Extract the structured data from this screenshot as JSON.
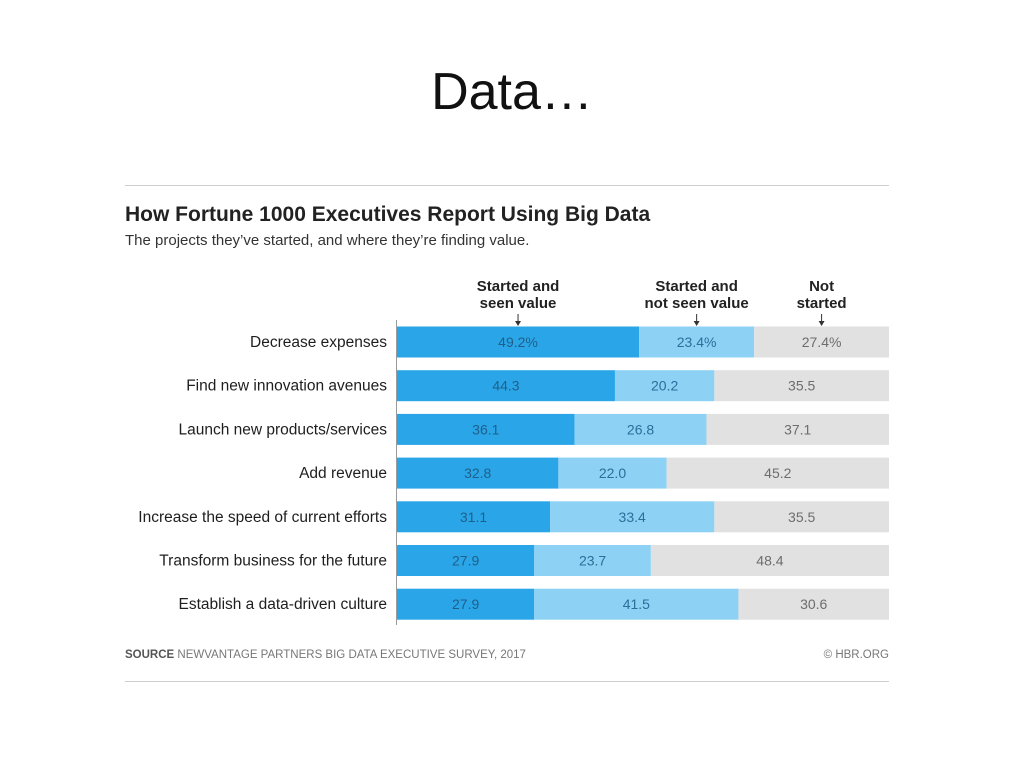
{
  "slide": {
    "title": "Data…"
  },
  "chart_data": {
    "type": "bar",
    "orientation": "horizontal-stacked",
    "title": "How Fortune 1000 Executives Report Using Big Data",
    "subtitle": "The projects they’ve started, and where they’re finding value.",
    "categories": [
      "Decrease expenses",
      "Find new innovation avenues",
      "Launch new products/services",
      "Add revenue",
      "Increase the speed of current efforts",
      "Transform business for the future",
      "Establish a data-driven culture"
    ],
    "series": [
      {
        "name": "Started and seen value",
        "color": "#2aa6e8",
        "values": [
          49.2,
          44.3,
          36.1,
          32.8,
          31.1,
          27.9,
          27.9
        ],
        "labels": [
          "49.2%",
          "44.3",
          "36.1",
          "32.8",
          "31.1",
          "27.9",
          "27.9"
        ]
      },
      {
        "name": "Started and not seen value",
        "color": "#8dd2f5",
        "values": [
          23.4,
          20.2,
          26.8,
          22.0,
          33.4,
          23.7,
          41.5
        ],
        "labels": [
          "23.4%",
          "20.2",
          "26.8",
          "22.0",
          "33.4",
          "23.7",
          "41.5"
        ]
      },
      {
        "name": "Not started",
        "color": "#e1e1e1",
        "values": [
          27.4,
          35.5,
          37.1,
          45.2,
          35.5,
          48.4,
          30.6
        ],
        "labels": [
          "27.4%",
          "35.5",
          "37.1",
          "45.2",
          "35.5",
          "48.4",
          "30.6"
        ]
      }
    ],
    "legend_header_lines": [
      [
        "Started and",
        "seen value"
      ],
      [
        "Started and",
        "not seen value"
      ],
      [
        "Not",
        "started"
      ]
    ],
    "xlim": [
      0,
      100
    ],
    "grid": false,
    "legend": "top, column headers with arrows"
  },
  "footer": {
    "source_label": "SOURCE",
    "source_text": "NEWVANTAGE PARTNERS BIG DATA EXECUTIVE SURVEY, 2017",
    "credit": "© HBR.ORG"
  }
}
